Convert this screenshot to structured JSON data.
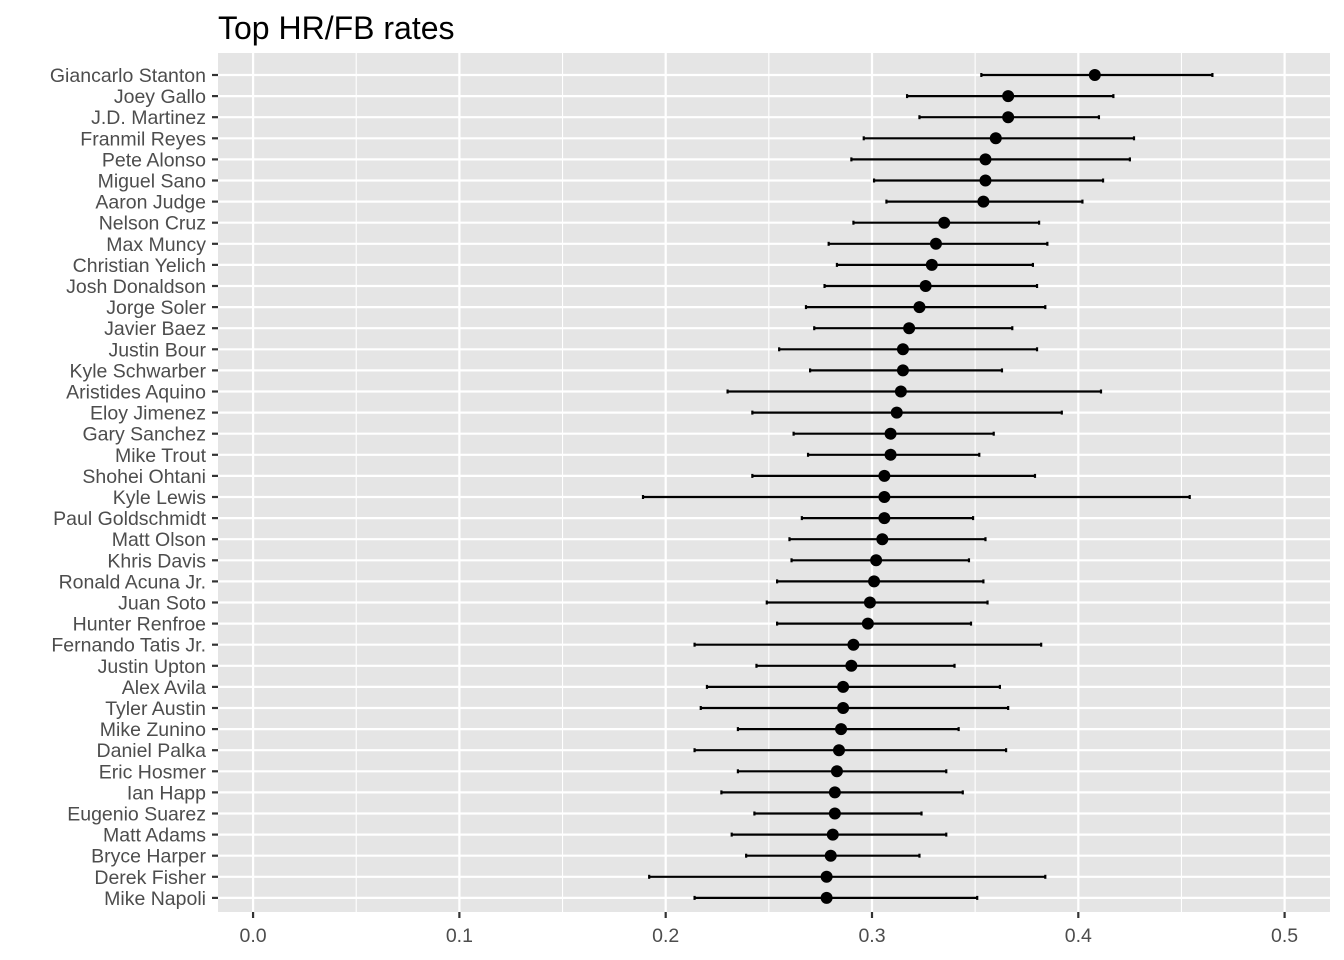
{
  "chart_data": {
    "type": "scatter",
    "subtype": "point-range",
    "title": "Top HR/FB rates",
    "xlabel": "",
    "ylabel": "",
    "xlim": [
      -0.017,
      0.522
    ],
    "xticks": [
      0.0,
      0.1,
      0.2,
      0.3,
      0.4,
      0.5
    ],
    "xtick_labels": [
      "0.0",
      "0.1",
      "0.2",
      "0.3",
      "0.4",
      "0.5"
    ],
    "grid": true,
    "legend": "none",
    "colors": {
      "panel_background": "#e5e5e5",
      "gridline": "#ffffff",
      "point": "#000000",
      "errorbar": "#000000",
      "tick_label": "#4d4d4d",
      "title": "#000000"
    },
    "categories": [
      "Giancarlo Stanton",
      "Joey Gallo",
      "J.D. Martinez",
      "Franmil Reyes",
      "Pete Alonso",
      "Miguel Sano",
      "Aaron Judge",
      "Nelson Cruz",
      "Max Muncy",
      "Christian Yelich",
      "Josh Donaldson",
      "Jorge Soler",
      "Javier Baez",
      "Justin Bour",
      "Kyle Schwarber",
      "Aristides Aquino",
      "Eloy Jimenez",
      "Gary Sanchez",
      "Mike Trout",
      "Shohei Ohtani",
      "Kyle Lewis",
      "Paul Goldschmidt",
      "Matt Olson",
      "Khris Davis",
      "Ronald Acuna Jr.",
      "Juan Soto",
      "Hunter Renfroe",
      "Fernando Tatis Jr.",
      "Justin Upton",
      "Alex Avila",
      "Tyler Austin",
      "Mike Zunino",
      "Daniel Palka",
      "Eric Hosmer",
      "Ian Happ",
      "Eugenio Suarez",
      "Matt Adams",
      "Bryce Harper",
      "Derek Fisher",
      "Mike Napoli"
    ],
    "values": [
      0.408,
      0.366,
      0.366,
      0.36,
      0.355,
      0.355,
      0.354,
      0.335,
      0.331,
      0.329,
      0.326,
      0.323,
      0.318,
      0.315,
      0.315,
      0.314,
      0.312,
      0.309,
      0.309,
      0.306,
      0.306,
      0.306,
      0.305,
      0.302,
      0.301,
      0.299,
      0.298,
      0.291,
      0.29,
      0.286,
      0.286,
      0.285,
      0.284,
      0.283,
      0.282,
      0.282,
      0.281,
      0.28,
      0.278,
      0.278
    ],
    "lower": [
      0.353,
      0.317,
      0.323,
      0.296,
      0.29,
      0.301,
      0.307,
      0.291,
      0.279,
      0.283,
      0.277,
      0.268,
      0.272,
      0.255,
      0.27,
      0.23,
      0.242,
      0.262,
      0.269,
      0.242,
      0.189,
      0.266,
      0.26,
      0.261,
      0.254,
      0.249,
      0.254,
      0.214,
      0.244,
      0.22,
      0.217,
      0.235,
      0.214,
      0.235,
      0.227,
      0.243,
      0.232,
      0.239,
      0.192,
      0.214
    ],
    "upper": [
      0.465,
      0.417,
      0.41,
      0.427,
      0.425,
      0.412,
      0.402,
      0.381,
      0.385,
      0.378,
      0.38,
      0.384,
      0.368,
      0.38,
      0.363,
      0.411,
      0.392,
      0.359,
      0.352,
      0.379,
      0.454,
      0.349,
      0.355,
      0.347,
      0.354,
      0.356,
      0.348,
      0.382,
      0.34,
      0.362,
      0.366,
      0.342,
      0.365,
      0.336,
      0.344,
      0.324,
      0.336,
      0.323,
      0.384,
      0.351
    ]
  }
}
